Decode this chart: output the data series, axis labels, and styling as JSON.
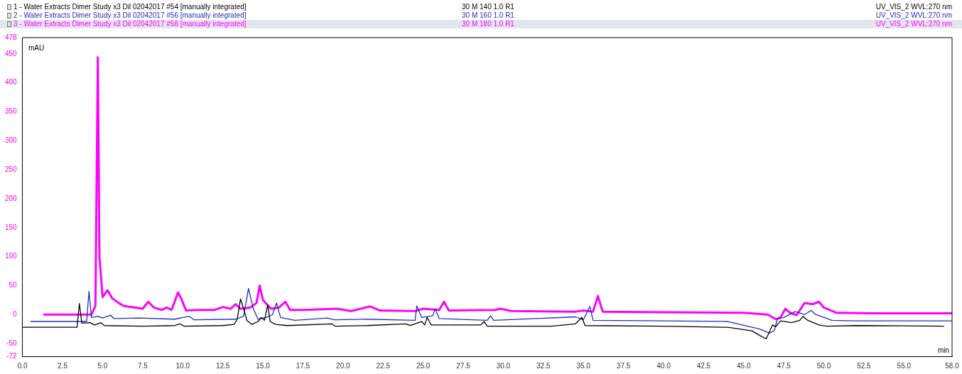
{
  "chart_data": {
    "type": "line",
    "xlabel": "min",
    "ylabel": "mAU",
    "legend": "top",
    "grid": false,
    "marker": "none",
    "line_style": "solid",
    "xlim": [
      0,
      58
    ],
    "ylim": [
      -72,
      478
    ],
    "xticks": [
      {
        "value": 0,
        "label": "0.0"
      },
      {
        "value": 2.5,
        "label": "2.5"
      },
      {
        "value": 5,
        "label": "5.0"
      },
      {
        "value": 7.5,
        "label": "7.5"
      },
      {
        "value": 10,
        "label": "10.0"
      },
      {
        "value": 12.5,
        "label": "12.5"
      },
      {
        "value": 15,
        "label": "15.0"
      },
      {
        "value": 17.5,
        "label": "17.5"
      },
      {
        "value": 20,
        "label": "20.0"
      },
      {
        "value": 22.5,
        "label": "22.5"
      },
      {
        "value": 25,
        "label": "25.0"
      },
      {
        "value": 27.5,
        "label": "27.5"
      },
      {
        "value": 30,
        "label": "30.0"
      },
      {
        "value": 32.5,
        "label": "32.5"
      },
      {
        "value": 35,
        "label": "35.0"
      },
      {
        "value": 37.5,
        "label": "37.5"
      },
      {
        "value": 40,
        "label": "40.0"
      },
      {
        "value": 42.5,
        "label": "42.5"
      },
      {
        "value": 45,
        "label": "45.0"
      },
      {
        "value": 47.5,
        "label": "47.5"
      },
      {
        "value": 50,
        "label": "50.0"
      },
      {
        "value": 52.5,
        "label": "52.5"
      },
      {
        "value": 55,
        "label": "55.0"
      },
      {
        "value": 58,
        "label": "58.0"
      }
    ],
    "yticks": [
      -72,
      -50,
      0,
      50,
      100,
      150,
      200,
      250,
      300,
      350,
      400,
      450,
      478
    ],
    "annotations": [
      "30 M 140 1.0 R1",
      "UV_VIS_2 WVL:270 nm",
      "30 M 160 1.0 R1",
      "UV_VIS_2 WVL:270 nm",
      "30 M 180 1.0 R1",
      "UV_VIS_2 WVL:270 nm"
    ],
    "series": [
      {
        "name": "1 - Water Extracts Dimer Study x3 Dil 02042017 #54 [manually integrated]",
        "color": "#000000",
        "x": [
          0,
          3.4,
          3.55,
          3.7,
          4.2,
          4.5,
          4.9,
          5.1,
          7.5,
          9.5,
          9.8,
          10.1,
          12.5,
          13.2,
          13.4,
          13.6,
          13.8,
          14.0,
          14.3,
          14.7,
          14.9,
          15.1,
          15.3,
          15.45,
          15.8,
          16.5,
          19.3,
          19.5,
          21.5,
          23.9,
          24.2,
          24.9,
          25.1,
          25.25,
          25.5,
          28.6,
          28.8,
          29,
          33,
          34.5,
          34.9,
          35.1,
          40,
          44,
          45.5,
          46.0,
          46.4,
          46.6,
          46.8,
          47.0,
          47.3,
          48.0,
          48.5,
          48.7,
          49.0,
          49.7,
          50.2,
          52,
          57.5
        ],
        "values": [
          -22,
          -22,
          19,
          -15,
          -14,
          -18,
          -14,
          -19,
          -20,
          -19,
          -16,
          -20,
          -19,
          -17,
          -8,
          27,
          10,
          -10,
          -17,
          -12,
          -5,
          -10,
          17,
          -12,
          -17,
          -19,
          -16,
          -20,
          -19,
          -16,
          -19,
          -12,
          -18,
          -5,
          -18,
          -18,
          -12,
          -20,
          -20,
          -16,
          -5,
          -19,
          -20,
          -22,
          -28,
          -36,
          -42,
          -30,
          -18,
          -21,
          -11,
          -14,
          -10,
          -3,
          -10,
          -18,
          -20,
          -19,
          -20
        ]
      },
      {
        "name": "2 - Water Extracts Dimer Study x3 Dil 02042017 #56 [manually integrated]",
        "color": "#1f2fb8",
        "x": [
          0.5,
          4.0,
          4.15,
          4.3,
          4.7,
          5.0,
          5.5,
          5.7,
          7.3,
          9.5,
          10.4,
          10.7,
          13.3,
          13.8,
          14.1,
          14.4,
          14.7,
          15.2,
          15.6,
          15.85,
          16.1,
          17,
          19,
          19.5,
          21.5,
          24.5,
          24.6,
          24.9,
          25.6,
          25.75,
          26,
          29,
          29.2,
          29.4,
          34.5,
          35.0,
          35.4,
          35.6,
          40,
          44,
          46,
          46.6,
          46.9,
          47.1,
          47.5,
          48.2,
          48.8,
          49.2,
          49.5,
          50.5,
          52,
          58
        ],
        "values": [
          -12,
          -12,
          40,
          -5,
          -3,
          -6,
          -1,
          -7,
          -6,
          -8,
          -3,
          -9,
          -8,
          -3,
          45,
          10,
          -8,
          -5,
          0,
          20,
          -5,
          -10,
          -6,
          -9,
          -8,
          -10,
          15,
          -5,
          -2,
          10,
          -7,
          -10,
          -2,
          -10,
          -4,
          -9,
          14,
          -10,
          -11,
          -12,
          -25,
          -32,
          -28,
          -8,
          -5,
          5,
          0,
          7,
          0,
          -10,
          -11,
          -11
        ]
      },
      {
        "name": "3 - Water Extracts Dimer Study x3 Dil 02042017 #58 [manually integrated]",
        "color": "#ff00ff",
        "x": [
          1.3,
          4.3,
          4.55,
          4.7,
          4.8,
          5.0,
          5.3,
          5.6,
          6.0,
          6.3,
          7.5,
          7.85,
          8.2,
          8.7,
          9.0,
          9.3,
          9.7,
          9.9,
          10.2,
          11,
          12,
          12.5,
          13.0,
          13.3,
          13.6,
          14.2,
          14.6,
          14.8,
          15.0,
          15.5,
          16.0,
          16.4,
          16.7,
          17.5,
          19.6,
          20.5,
          21.7,
          22.3,
          24.5,
          25,
          26.0,
          26.3,
          26.6,
          29.5,
          29.8,
          30.5,
          34.5,
          35.0,
          35.6,
          35.9,
          36.2,
          40,
          45,
          46.5,
          47.0,
          47.3,
          47.6,
          47.9,
          48.3,
          48.8,
          49.3,
          49.7,
          50.0,
          50.8,
          53,
          58
        ],
        "values": [
          0,
          0,
          15,
          444,
          100,
          30,
          42,
          28,
          20,
          15,
          10,
          22,
          12,
          8,
          12,
          8,
          38,
          28,
          7,
          8,
          8,
          13,
          10,
          18,
          10,
          12,
          20,
          50,
          25,
          10,
          12,
          22,
          8,
          8,
          10,
          6,
          14,
          7,
          6,
          10,
          8,
          22,
          7,
          8,
          10,
          6,
          5,
          7,
          5,
          32,
          5,
          4,
          3,
          0,
          -8,
          -5,
          10,
          3,
          -1,
          20,
          18,
          22,
          12,
          3,
          2,
          2
        ]
      }
    ]
  }
}
